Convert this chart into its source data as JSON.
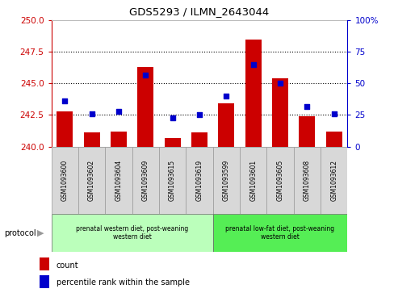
{
  "title": "GDS5293 / ILMN_2643044",
  "samples": [
    "GSM1093600",
    "GSM1093602",
    "GSM1093604",
    "GSM1093609",
    "GSM1093615",
    "GSM1093619",
    "GSM1093599",
    "GSM1093601",
    "GSM1093605",
    "GSM1093608",
    "GSM1093612"
  ],
  "counts": [
    242.8,
    241.1,
    241.2,
    246.3,
    240.7,
    241.1,
    243.4,
    248.5,
    245.4,
    242.4,
    241.2
  ],
  "percentiles": [
    36,
    26,
    28,
    57,
    23,
    25,
    40,
    65,
    50,
    32,
    26
  ],
  "ymin": 240,
  "ymax": 250,
  "yticks": [
    240,
    242.5,
    245,
    247.5,
    250
  ],
  "y2min": 0,
  "y2max": 100,
  "y2ticks": [
    0,
    25,
    50,
    75,
    100
  ],
  "bar_color": "#cc0000",
  "dot_color": "#0000cc",
  "axis_color_left": "#cc0000",
  "axis_color_right": "#0000cc",
  "group1_label": "prenatal western diet, post-weaning\nwestern diet",
  "group2_label": "prenatal low-fat diet, post-weaning\nwestern diet",
  "group1_count": 6,
  "group2_count": 5,
  "group1_color": "#bbffbb",
  "group2_color": "#55ee55",
  "legend_count": "count",
  "legend_pct": "percentile rank within the sample",
  "protocol_label": "protocol",
  "bg_color": "#ffffff"
}
